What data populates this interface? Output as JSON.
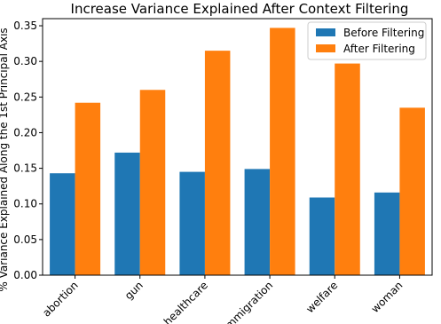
{
  "chart_data": {
    "type": "bar",
    "title": "Increase Variance Explained After Context Filtering",
    "xlabel": "",
    "ylabel": "% Variance Explained Along the 1st Principal Axis",
    "categories": [
      "abortion",
      "gun",
      "healthcare",
      "immigration",
      "welfare",
      "woman"
    ],
    "series": [
      {
        "name": "Before Filtering",
        "color": "#1f77b4",
        "values": [
          0.143,
          0.172,
          0.145,
          0.149,
          0.109,
          0.116
        ]
      },
      {
        "name": "After Filtering",
        "color": "#ff7f0e",
        "values": [
          0.242,
          0.26,
          0.315,
          0.347,
          0.297,
          0.235
        ]
      }
    ],
    "ylim": [
      0,
      0.36
    ],
    "yticks": [
      "0.00",
      "0.05",
      "0.10",
      "0.15",
      "0.20",
      "0.25",
      "0.30",
      "0.35"
    ],
    "legend_position": "top-right",
    "grid": false
  }
}
